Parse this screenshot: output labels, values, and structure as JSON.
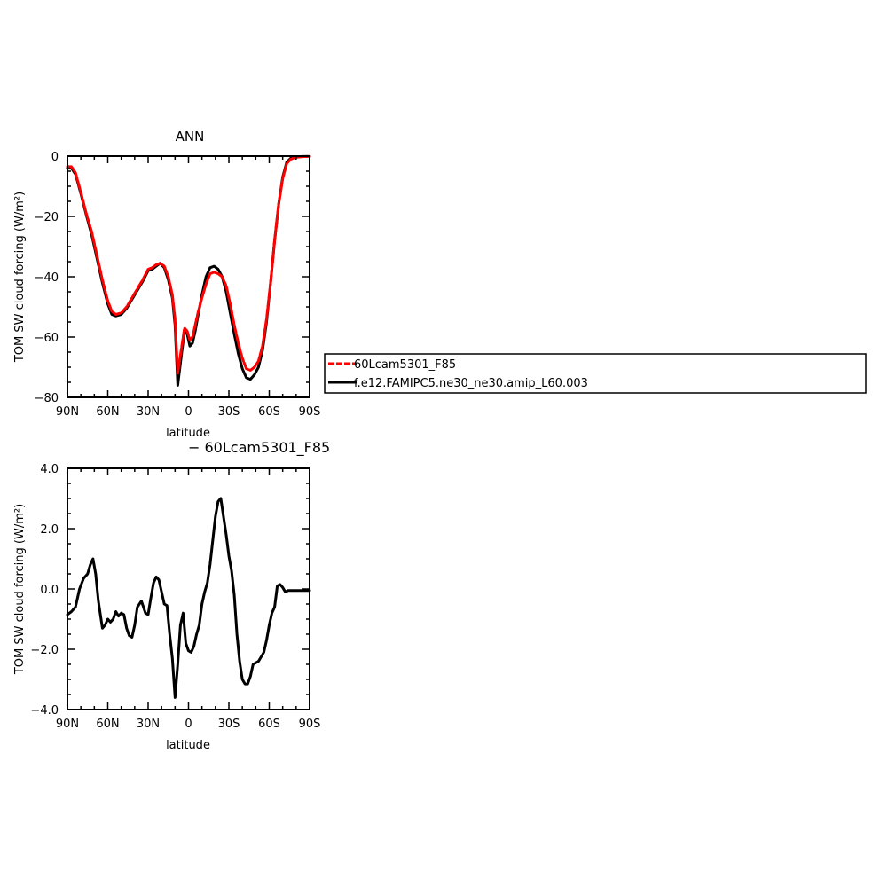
{
  "colors": {
    "red": "#ff0000",
    "black": "#000000",
    "background": "#ffffff"
  },
  "chart_data": [
    {
      "type": "line",
      "title": "ANN",
      "xlabel": "latitude",
      "ylabel": "TOM SW cloud forcing (W/m²)",
      "xlim": [
        -90,
        90
      ],
      "ylim": [
        -80,
        0
      ],
      "x_direction": "north-to-south",
      "xticks": [
        -90,
        -60,
        -30,
        0,
        30,
        60,
        90
      ],
      "xtick_labels": [
        "90N",
        "60N",
        "30N",
        "0",
        "30S",
        "60S",
        "90S"
      ],
      "yticks": [
        -80,
        -60,
        -40,
        -20,
        0
      ],
      "ytick_labels": [
        "−80",
        "−60",
        "−40",
        "−20",
        "0"
      ],
      "legend": {
        "placement": "right, outside plot",
        "entries": [
          "60Lcam5301_F85",
          "f.e12.FAMIPC5.ne30_ne30.amip_L60.003"
        ]
      },
      "series": [
        {
          "name": "60Lcam5301_F85",
          "color": "#ff0000",
          "style": "dashed",
          "x": [
            -90,
            -87,
            -84,
            -80,
            -76,
            -72,
            -68,
            -64,
            -60,
            -57,
            -54,
            -50,
            -46,
            -42,
            -38,
            -34,
            -30,
            -27,
            -24,
            -21,
            -18,
            -15,
            -12,
            -10,
            -8,
            -5,
            -3,
            -1,
            1,
            3,
            5,
            7,
            10,
            13,
            16,
            19,
            22,
            25,
            28,
            31,
            34,
            37,
            40,
            43,
            46,
            49,
            52,
            55,
            58,
            61,
            64,
            67,
            70,
            73,
            76,
            79,
            82,
            85,
            88,
            90
          ],
          "y": [
            -3.5,
            -3.5,
            -5.5,
            -12,
            -19,
            -25,
            -33,
            -41,
            -48,
            -51.5,
            -52.5,
            -52,
            -50,
            -47,
            -44,
            -41,
            -37.5,
            -37,
            -36,
            -35.5,
            -36.5,
            -40,
            -46,
            -54,
            -72,
            -63,
            -57,
            -58,
            -61,
            -60,
            -56,
            -52,
            -47,
            -42.5,
            -39,
            -38.5,
            -39,
            -40,
            -43,
            -49,
            -56,
            -62,
            -67,
            -70.5,
            -71,
            -70,
            -68,
            -63,
            -54,
            -42,
            -28,
            -16,
            -7.5,
            -2.5,
            -1,
            -0.5,
            -0.3,
            -0.2,
            -0.1,
            -0.1
          ]
        },
        {
          "name": "f.e12.FAMIPC5.ne30_ne30.amip_L60.003",
          "color": "#000000",
          "style": "solid",
          "x": [
            -90,
            -87,
            -84,
            -80,
            -76,
            -72,
            -68,
            -64,
            -60,
            -57,
            -54,
            -50,
            -46,
            -42,
            -38,
            -34,
            -30,
            -27,
            -24,
            -21,
            -18,
            -15,
            -12,
            -10,
            -8,
            -5,
            -3,
            -1,
            1,
            3,
            5,
            7,
            10,
            13,
            16,
            19,
            22,
            25,
            28,
            31,
            34,
            37,
            40,
            43,
            46,
            49,
            52,
            55,
            58,
            61,
            64,
            67,
            70,
            73,
            76,
            79,
            82,
            85,
            88,
            90
          ],
          "y": [
            -4,
            -4,
            -6,
            -12.5,
            -19.5,
            -26,
            -34,
            -42,
            -49,
            -52.5,
            -53,
            -52.5,
            -50.5,
            -47.5,
            -44.5,
            -41.5,
            -38,
            -37.5,
            -36.5,
            -35.5,
            -37,
            -41,
            -47,
            -56,
            -76,
            -65,
            -58,
            -59,
            -63,
            -62,
            -58,
            -53,
            -46,
            -40,
            -37,
            -36.5,
            -37.5,
            -40,
            -45,
            -52,
            -59,
            -65.5,
            -70.5,
            -73.5,
            -74,
            -72.5,
            -70,
            -64.5,
            -55,
            -42,
            -28,
            -16,
            -7,
            -2,
            -0.7,
            -0.4,
            -0.2,
            -0.1,
            -0.1,
            -0.1
          ]
        }
      ]
    },
    {
      "type": "line",
      "title": "− 60Lcam5301_F85",
      "xlabel": "latitude",
      "ylabel": "TOM SW cloud forcing (W/m²)",
      "xlim": [
        -90,
        90
      ],
      "ylim": [
        -4,
        4
      ],
      "x_direction": "north-to-south",
      "xticks": [
        -90,
        -60,
        -30,
        0,
        30,
        60,
        90
      ],
      "xtick_labels": [
        "90N",
        "60N",
        "30N",
        "0",
        "30S",
        "60S",
        "90S"
      ],
      "yticks": [
        -4,
        -2,
        0,
        2,
        4
      ],
      "ytick_labels": [
        "−4.0",
        "−2.0",
        "0.0",
        "2.0",
        "4.0"
      ],
      "series": [
        {
          "color": "#000000",
          "style": "solid",
          "x": [
            -90,
            -87,
            -84,
            -81,
            -78,
            -75,
            -73,
            -71,
            -69,
            -67,
            -64,
            -62,
            -60,
            -58,
            -56,
            -54,
            -52,
            -50,
            -48,
            -46,
            -44,
            -42,
            -40,
            -38,
            -35,
            -32,
            -30,
            -28,
            -26,
            -24,
            -22,
            -20,
            -18,
            -16,
            -14,
            -12,
            -10,
            -8,
            -6,
            -4,
            -2,
            0,
            2,
            4,
            6,
            8,
            10,
            12,
            14,
            16,
            18,
            20,
            22,
            24,
            26,
            28,
            30,
            32,
            34,
            36,
            38,
            40,
            42,
            44,
            46,
            48,
            50,
            52,
            54,
            56,
            58,
            60,
            62,
            64,
            66,
            68,
            70,
            72,
            74,
            76,
            78,
            80,
            82,
            84,
            86,
            88,
            90
          ],
          "y": [
            -0.85,
            -0.75,
            -0.6,
            0,
            0.35,
            0.5,
            0.8,
            1.0,
            0.5,
            -0.4,
            -1.3,
            -1.2,
            -1.0,
            -1.1,
            -1.0,
            -0.75,
            -0.9,
            -0.8,
            -0.85,
            -1.3,
            -1.55,
            -1.6,
            -1.2,
            -0.6,
            -0.4,
            -0.8,
            -0.85,
            -0.3,
            0.2,
            0.4,
            0.3,
            -0.1,
            -0.5,
            -0.55,
            -1.5,
            -2.3,
            -3.6,
            -2.5,
            -1.2,
            -0.8,
            -1.8,
            -2.05,
            -2.1,
            -1.9,
            -1.5,
            -1.2,
            -0.5,
            -0.1,
            0.2,
            0.8,
            1.6,
            2.4,
            2.9,
            3.0,
            2.4,
            1.8,
            1.1,
            0.6,
            -0.2,
            -1.5,
            -2.4,
            -3.0,
            -3.15,
            -3.15,
            -2.9,
            -2.5,
            -2.45,
            -2.4,
            -2.25,
            -2.1,
            -1.7,
            -1.2,
            -0.8,
            -0.6,
            0.1,
            0.15,
            0.05,
            -0.1,
            -0.05,
            -0.05,
            -0.05,
            -0.05,
            -0.05,
            -0.05,
            -0.05,
            -0.05,
            -0.05
          ]
        }
      ]
    }
  ]
}
